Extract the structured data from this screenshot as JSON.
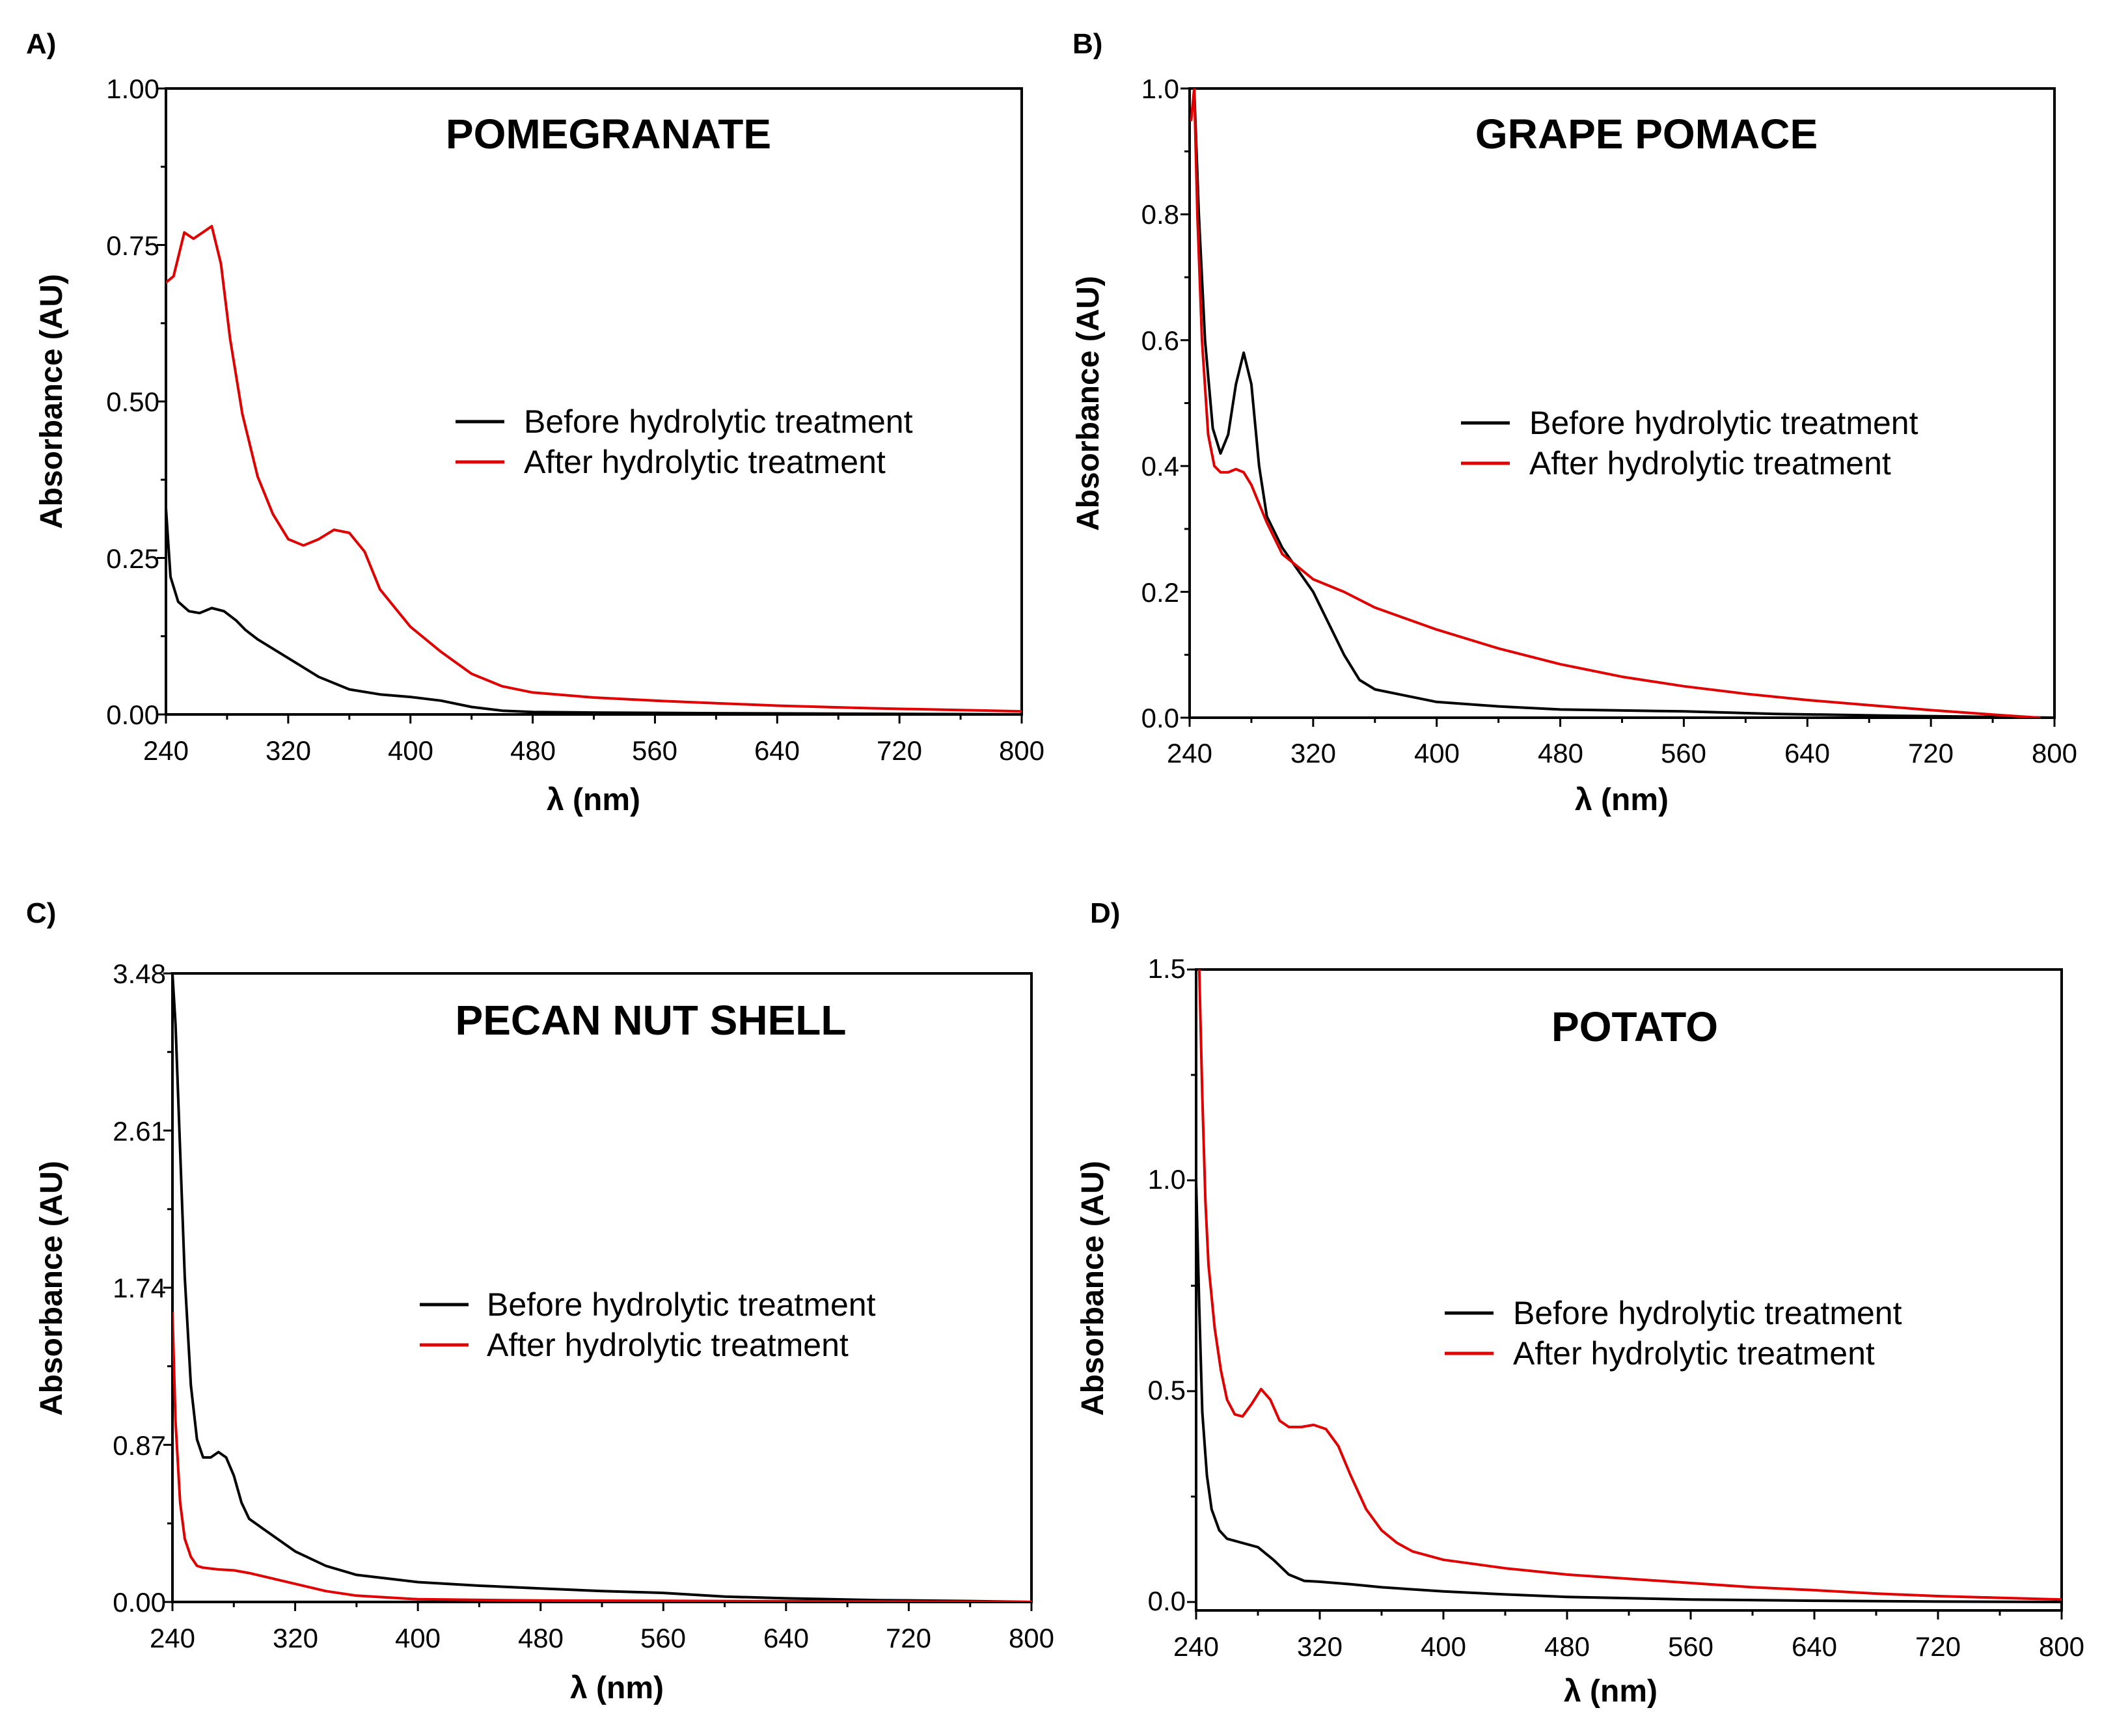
{
  "chart_data": [
    {
      "panel": "A)",
      "type": "line",
      "title": "POMEGRANATE",
      "xlabel": "λ (nm)",
      "ylabel": "Absorbance (AU)",
      "xlim": [
        240,
        800
      ],
      "ylim": [
        0,
        1.0
      ],
      "xticks": [
        240,
        320,
        400,
        480,
        560,
        640,
        720,
        800
      ],
      "yticks": [
        "0.00",
        "0.25",
        "0.50",
        "0.75",
        "1.00"
      ],
      "legend": "center-right",
      "series": [
        {
          "name": "Before hydrolytic treatment",
          "color": "#000000",
          "x": [
            240,
            243,
            248,
            255,
            262,
            270,
            278,
            286,
            292,
            300,
            320,
            340,
            360,
            380,
            400,
            420,
            440,
            460,
            480,
            520,
            600,
            700,
            800
          ],
          "y": [
            0.33,
            0.22,
            0.18,
            0.165,
            0.162,
            0.17,
            0.165,
            0.15,
            0.135,
            0.12,
            0.09,
            0.06,
            0.04,
            0.032,
            0.028,
            0.022,
            0.012,
            0.006,
            0.004,
            0.003,
            0.002,
            0.001,
            0.0
          ]
        },
        {
          "name": "After hydrolytic treatment",
          "color": "#e00000",
          "x": [
            240,
            245,
            252,
            258,
            264,
            270,
            276,
            282,
            290,
            300,
            310,
            320,
            330,
            340,
            350,
            360,
            370,
            380,
            390,
            400,
            420,
            440,
            460,
            480,
            520,
            560,
            600,
            640,
            700,
            760,
            800
          ],
          "y": [
            0.69,
            0.7,
            0.77,
            0.76,
            0.77,
            0.78,
            0.72,
            0.6,
            0.48,
            0.38,
            0.32,
            0.28,
            0.27,
            0.28,
            0.295,
            0.29,
            0.26,
            0.2,
            0.17,
            0.14,
            0.1,
            0.065,
            0.045,
            0.035,
            0.027,
            0.022,
            0.018,
            0.014,
            0.01,
            0.007,
            0.005
          ]
        }
      ]
    },
    {
      "panel": "B)",
      "type": "line",
      "title": "GRAPE POMACE",
      "xlabel": "λ (nm)",
      "ylabel": "Absorbance (AU)",
      "xlim": [
        240,
        800
      ],
      "ylim": [
        0,
        1.0
      ],
      "xticks": [
        240,
        320,
        400,
        480,
        560,
        640,
        720,
        800
      ],
      "yticks": [
        "0.0",
        "0.2",
        "0.4",
        "0.6",
        "0.8",
        "1.0"
      ],
      "legend": "center-right",
      "series": [
        {
          "name": "Before hydrolytic treatment",
          "color": "#000000",
          "x": [
            243,
            246,
            250,
            255,
            260,
            265,
            270,
            275,
            280,
            285,
            290,
            300,
            320,
            340,
            350,
            360,
            380,
            400,
            440,
            480,
            560,
            620,
            700,
            800
          ],
          "y": [
            1.0,
            0.8,
            0.6,
            0.46,
            0.42,
            0.45,
            0.53,
            0.58,
            0.53,
            0.4,
            0.32,
            0.27,
            0.2,
            0.1,
            0.06,
            0.045,
            0.035,
            0.025,
            0.018,
            0.013,
            0.01,
            0.006,
            0.003,
            0.0
          ]
        },
        {
          "name": "After hydrolytic treatment",
          "color": "#e00000",
          "x": [
            241,
            243,
            245,
            248,
            252,
            256,
            260,
            265,
            270,
            275,
            280,
            290,
            300,
            320,
            340,
            360,
            400,
            440,
            480,
            520,
            560,
            600,
            640,
            680,
            720,
            760,
            790
          ],
          "y": [
            0.95,
            1.0,
            0.8,
            0.6,
            0.45,
            0.4,
            0.39,
            0.39,
            0.395,
            0.39,
            0.37,
            0.31,
            0.26,
            0.22,
            0.2,
            0.175,
            0.14,
            0.11,
            0.085,
            0.065,
            0.05,
            0.038,
            0.028,
            0.02,
            0.012,
            0.005,
            0.0
          ]
        }
      ]
    },
    {
      "panel": "C)",
      "type": "line",
      "title": "PECAN NUT SHELL",
      "xlabel": "λ (nm)",
      "ylabel": "Absorbance (AU)",
      "xlim": [
        240,
        800
      ],
      "ylim": [
        0,
        3.48
      ],
      "xticks": [
        240,
        320,
        400,
        480,
        560,
        640,
        720,
        800
      ],
      "yticks": [
        "0.00",
        "0.87",
        "1.74",
        "2.61",
        "3.48"
      ],
      "legend": "center-right",
      "series": [
        {
          "name": "Before hydrolytic treatment",
          "color": "#000000",
          "x": [
            240,
            242,
            245,
            248,
            252,
            256,
            260,
            265,
            270,
            275,
            280,
            285,
            290,
            300,
            320,
            340,
            360,
            400,
            440,
            480,
            520,
            560,
            600,
            640,
            700,
            760,
            800
          ],
          "y": [
            3.48,
            3.2,
            2.5,
            1.8,
            1.2,
            0.9,
            0.8,
            0.8,
            0.83,
            0.8,
            0.7,
            0.55,
            0.46,
            0.4,
            0.28,
            0.2,
            0.15,
            0.11,
            0.09,
            0.075,
            0.06,
            0.05,
            0.03,
            0.02,
            0.01,
            0.005,
            0.0
          ]
        },
        {
          "name": "After hydrolytic treatment",
          "color": "#e00000",
          "x": [
            240,
            242,
            245,
            248,
            252,
            256,
            260,
            270,
            280,
            290,
            300,
            320,
            340,
            360,
            400,
            480,
            560,
            640,
            720,
            800
          ],
          "y": [
            1.6,
            1.0,
            0.55,
            0.35,
            0.25,
            0.2,
            0.19,
            0.18,
            0.175,
            0.16,
            0.14,
            0.1,
            0.06,
            0.035,
            0.015,
            0.008,
            0.006,
            0.004,
            0.002,
            0.0
          ]
        }
      ]
    },
    {
      "panel": "D)",
      "type": "line",
      "title": "POTATO",
      "xlabel": "λ (nm)",
      "ylabel": "Absorbance (AU)",
      "xlim": [
        240,
        800
      ],
      "ylim": [
        -0.02,
        1.5
      ],
      "xticks": [
        240,
        320,
        400,
        480,
        560,
        640,
        720,
        800
      ],
      "yticks": [
        "0.0",
        "0.5",
        "1.0",
        "1.5"
      ],
      "legend": "center-right",
      "series": [
        {
          "name": "Before hydrolytic treatment",
          "color": "#000000",
          "x": [
            240,
            242,
            244,
            247,
            250,
            255,
            260,
            265,
            270,
            280,
            290,
            300,
            310,
            320,
            340,
            360,
            400,
            440,
            480,
            560,
            640,
            720,
            800
          ],
          "y": [
            1.0,
            0.7,
            0.45,
            0.3,
            0.22,
            0.17,
            0.15,
            0.145,
            0.14,
            0.13,
            0.1,
            0.065,
            0.05,
            0.048,
            0.042,
            0.035,
            0.025,
            0.018,
            0.012,
            0.006,
            0.003,
            0.001,
            0.0
          ]
        },
        {
          "name": "After hydrolytic treatment",
          "color": "#e00000",
          "x": [
            242,
            244,
            246,
            248,
            252,
            256,
            260,
            265,
            270,
            276,
            282,
            288,
            294,
            300,
            308,
            316,
            324,
            332,
            340,
            350,
            360,
            370,
            380,
            400,
            440,
            480,
            520,
            560,
            600,
            640,
            680,
            720,
            760,
            800
          ],
          "y": [
            1.5,
            1.2,
            0.95,
            0.8,
            0.65,
            0.55,
            0.48,
            0.445,
            0.44,
            0.47,
            0.505,
            0.48,
            0.43,
            0.415,
            0.415,
            0.42,
            0.41,
            0.37,
            0.3,
            0.22,
            0.17,
            0.14,
            0.12,
            0.1,
            0.08,
            0.065,
            0.055,
            0.045,
            0.035,
            0.028,
            0.02,
            0.014,
            0.01,
            0.006
          ]
        }
      ]
    }
  ]
}
